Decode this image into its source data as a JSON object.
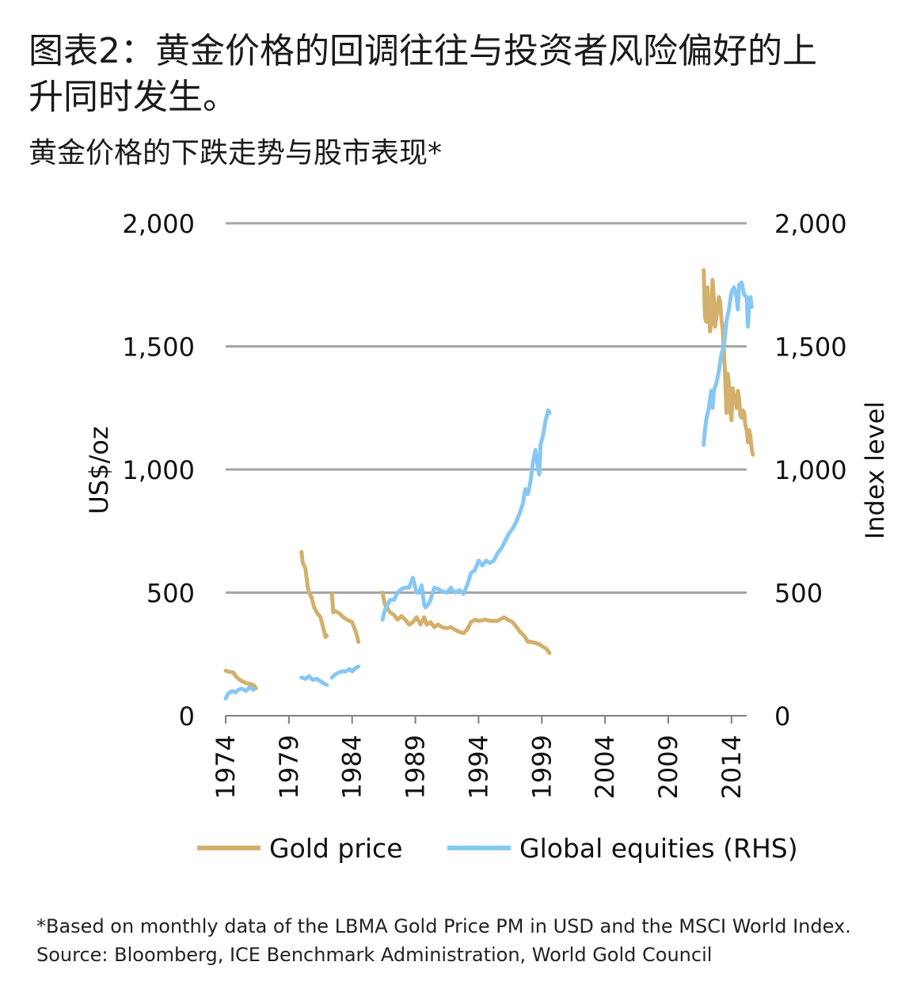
{
  "title": "图表2：黄金价格的回调往往与投资者风险偏好的上升同时发生。",
  "subtitle": "黄金价格的下跌走势与股市表现*",
  "footnote": {
    "line1": "*Based on monthly data of the LBMA Gold Price PM in USD and the MSCI World Index.",
    "line2": "Source: Bloomberg, ICE Benchmark Administration, World Gold Council"
  },
  "colors": {
    "gold": "#D3B06B",
    "equities": "#86C8F3",
    "grid": "#A6A6A6",
    "axis": "#7F7F7F"
  },
  "chart_data": {
    "type": "line",
    "ylabel_left": "US$/oz",
    "ylabel_right": "Index level",
    "ylim": [
      0,
      2000
    ],
    "y_ticks": [
      0,
      500,
      1000,
      1500,
      2000
    ],
    "y_tick_labels": [
      "0",
      "500",
      "1,000",
      "1,500",
      "2,000"
    ],
    "xlim": [
      1974,
      2015.2
    ],
    "x_ticks": [
      1974,
      1979,
      1984,
      1989,
      1994,
      1999,
      2004,
      2009,
      2014
    ],
    "x_tick_labels": [
      "1974",
      "1979",
      "1984",
      "1989",
      "1994",
      "1999",
      "2004",
      "2009",
      "2014"
    ],
    "legend": [
      "Gold price",
      "Global equities (RHS)"
    ],
    "legend_position": "bottom",
    "series": [
      {
        "name": "Gold price",
        "axis": "left",
        "segments": [
          [
            [
              1974.0,
              183
            ],
            [
              1974.3,
              178
            ],
            [
              1974.6,
              176
            ],
            [
              1974.8,
              160
            ],
            [
              1975.0,
              150
            ],
            [
              1975.3,
              140
            ],
            [
              1975.6,
              133
            ],
            [
              1975.8,
              130
            ],
            [
              1976.0,
              128
            ],
            [
              1976.2,
              124
            ],
            [
              1976.4,
              112
            ]
          ],
          [
            [
              1980.0,
              665
            ],
            [
              1980.1,
              620
            ],
            [
              1980.3,
              600
            ],
            [
              1980.5,
              520
            ],
            [
              1980.6,
              500
            ],
            [
              1980.8,
              480
            ],
            [
              1981.0,
              440
            ],
            [
              1981.2,
              420
            ],
            [
              1981.5,
              400
            ],
            [
              1981.7,
              360
            ],
            [
              1981.9,
              320
            ],
            [
              1982.0,
              325
            ]
          ],
          [
            [
              1982.4,
              495
            ],
            [
              1982.5,
              420
            ],
            [
              1982.7,
              425
            ],
            [
              1983.0,
              415
            ],
            [
              1983.3,
              400
            ],
            [
              1983.6,
              390
            ],
            [
              1984.0,
              380
            ],
            [
              1984.3,
              340
            ],
            [
              1984.5,
              300
            ]
          ],
          [
            [
              1986.4,
              500
            ],
            [
              1986.6,
              450
            ],
            [
              1987.0,
              420
            ],
            [
              1987.3,
              410
            ],
            [
              1987.6,
              390
            ],
            [
              1987.9,
              405
            ],
            [
              1988.2,
              390
            ],
            [
              1988.5,
              370
            ],
            [
              1988.8,
              380
            ],
            [
              1989.1,
              400
            ],
            [
              1989.4,
              370
            ],
            [
              1989.7,
              400
            ],
            [
              1989.9,
              370
            ],
            [
              1990.2,
              380
            ],
            [
              1990.5,
              360
            ],
            [
              1990.8,
              370
            ],
            [
              1991.1,
              360
            ],
            [
              1991.5,
              355
            ],
            [
              1991.8,
              360
            ],
            [
              1992.1,
              350
            ],
            [
              1992.5,
              340
            ],
            [
              1992.8,
              335
            ],
            [
              1993.1,
              350
            ],
            [
              1993.4,
              380
            ],
            [
              1993.7,
              390
            ],
            [
              1994.0,
              385
            ],
            [
              1994.5,
              390
            ],
            [
              1995.0,
              385
            ],
            [
              1995.5,
              385
            ],
            [
              1996.0,
              400
            ],
            [
              1996.3,
              390
            ],
            [
              1996.7,
              380
            ],
            [
              1997.0,
              360
            ],
            [
              1997.3,
              340
            ],
            [
              1997.6,
              325
            ],
            [
              1997.9,
              300
            ],
            [
              1998.2,
              300
            ],
            [
              1998.5,
              295
            ],
            [
              1998.8,
              290
            ],
            [
              1999.1,
              280
            ],
            [
              1999.4,
              270
            ],
            [
              1999.6,
              255
            ]
          ],
          [
            [
              2011.8,
              1810
            ],
            [
              2011.9,
              1620
            ],
            [
              2012.0,
              1600
            ],
            [
              2012.1,
              1740
            ],
            [
              2012.2,
              1650
            ],
            [
              2012.3,
              1560
            ],
            [
              2012.4,
              1600
            ],
            [
              2012.5,
              1770
            ],
            [
              2012.6,
              1700
            ],
            [
              2012.7,
              1580
            ],
            [
              2012.8,
              1620
            ],
            [
              2012.9,
              1660
            ],
            [
              2013.0,
              1700
            ],
            [
              2013.1,
              1680
            ],
            [
              2013.2,
              1610
            ],
            [
              2013.3,
              1570
            ],
            [
              2013.4,
              1480
            ],
            [
              2013.5,
              1380
            ],
            [
              2013.6,
              1230
            ],
            [
              2013.7,
              1390
            ],
            [
              2013.8,
              1350
            ],
            [
              2013.9,
              1240
            ],
            [
              2014.0,
              1200
            ],
            [
              2014.1,
              1330
            ],
            [
              2014.2,
              1290
            ],
            [
              2014.3,
              1300
            ],
            [
              2014.4,
              1250
            ],
            [
              2014.5,
              1320
            ],
            [
              2014.6,
              1290
            ],
            [
              2014.7,
              1220
            ],
            [
              2014.8,
              1210
            ],
            [
              2014.9,
              1240
            ],
            [
              2015.0,
              1230
            ],
            [
              2015.1,
              1180
            ],
            [
              2015.2,
              1160
            ],
            [
              2015.3,
              1110
            ],
            [
              2015.4,
              1160
            ],
            [
              2015.5,
              1130
            ],
            [
              2015.6,
              1080
            ],
            [
              2015.7,
              1060
            ]
          ]
        ]
      },
      {
        "name": "Global equities (RHS)",
        "axis": "right",
        "segments": [
          [
            [
              1974.0,
              70
            ],
            [
              1974.2,
              90
            ],
            [
              1974.5,
              100
            ],
            [
              1974.8,
              95
            ],
            [
              1975.0,
              105
            ],
            [
              1975.3,
              110
            ],
            [
              1975.6,
              100
            ],
            [
              1975.9,
              115
            ],
            [
              1976.2,
              105
            ]
          ],
          [
            [
              1980.0,
              155
            ],
            [
              1980.3,
              150
            ],
            [
              1980.6,
              160
            ],
            [
              1980.9,
              145
            ],
            [
              1981.2,
              150
            ],
            [
              1981.5,
              140
            ],
            [
              1981.8,
              130
            ],
            [
              1982.0,
              125
            ]
          ],
          [
            [
              1982.4,
              155
            ],
            [
              1982.6,
              165
            ],
            [
              1982.9,
              175
            ],
            [
              1983.2,
              180
            ],
            [
              1983.5,
              180
            ],
            [
              1983.8,
              190
            ],
            [
              1984.0,
              180
            ],
            [
              1984.3,
              195
            ],
            [
              1984.5,
              200
            ]
          ],
          [
            [
              1986.4,
              390
            ],
            [
              1986.6,
              430
            ],
            [
              1986.8,
              450
            ],
            [
              1987.0,
              470
            ],
            [
              1987.3,
              470
            ],
            [
              1987.6,
              500
            ],
            [
              1987.9,
              515
            ],
            [
              1988.2,
              520
            ],
            [
              1988.5,
              520
            ],
            [
              1988.8,
              560
            ],
            [
              1989.1,
              500
            ],
            [
              1989.3,
              500
            ],
            [
              1989.5,
              530
            ],
            [
              1989.7,
              450
            ],
            [
              1989.8,
              440
            ],
            [
              1990.0,
              450
            ],
            [
              1990.2,
              470
            ],
            [
              1990.5,
              520
            ],
            [
              1990.8,
              515
            ],
            [
              1991.1,
              505
            ],
            [
              1991.5,
              500
            ],
            [
              1991.8,
              520
            ],
            [
              1992.1,
              500
            ],
            [
              1992.5,
              510
            ],
            [
              1992.8,
              495
            ],
            [
              1993.1,
              530
            ],
            [
              1993.4,
              580
            ],
            [
              1993.7,
              590
            ],
            [
              1994.0,
              630
            ],
            [
              1994.3,
              610
            ],
            [
              1994.6,
              630
            ],
            [
              1994.9,
              620
            ],
            [
              1995.2,
              630
            ],
            [
              1995.5,
              660
            ],
            [
              1995.8,
              680
            ],
            [
              1996.1,
              710
            ],
            [
              1996.4,
              740
            ],
            [
              1996.7,
              760
            ],
            [
              1997.0,
              790
            ],
            [
              1997.3,
              830
            ],
            [
              1997.5,
              860
            ],
            [
              1997.7,
              920
            ],
            [
              1997.9,
              900
            ],
            [
              1998.1,
              950
            ],
            [
              1998.3,
              1030
            ],
            [
              1998.5,
              1080
            ],
            [
              1998.7,
              1000
            ],
            [
              1998.8,
              980
            ],
            [
              1998.9,
              1100
            ],
            [
              1999.1,
              1140
            ],
            [
              1999.3,
              1200
            ],
            [
              1999.5,
              1240
            ],
            [
              1999.6,
              1230
            ]
          ],
          [
            [
              2011.8,
              1100
            ],
            [
              2011.9,
              1160
            ],
            [
              2012.0,
              1200
            ],
            [
              2012.2,
              1250
            ],
            [
              2012.4,
              1320
            ],
            [
              2012.5,
              1250
            ],
            [
              2012.6,
              1320
            ],
            [
              2012.8,
              1350
            ],
            [
              2013.0,
              1400
            ],
            [
              2013.2,
              1470
            ],
            [
              2013.4,
              1500
            ],
            [
              2013.6,
              1600
            ],
            [
              2013.8,
              1650
            ],
            [
              2014.0,
              1720
            ],
            [
              2014.2,
              1740
            ],
            [
              2014.4,
              1700
            ],
            [
              2014.5,
              1650
            ],
            [
              2014.6,
              1750
            ],
            [
              2014.8,
              1760
            ],
            [
              2015.0,
              1710
            ],
            [
              2015.2,
              1700
            ],
            [
              2015.3,
              1580
            ],
            [
              2015.4,
              1680
            ],
            [
              2015.5,
              1700
            ],
            [
              2015.6,
              1660
            ]
          ]
        ]
      }
    ]
  }
}
